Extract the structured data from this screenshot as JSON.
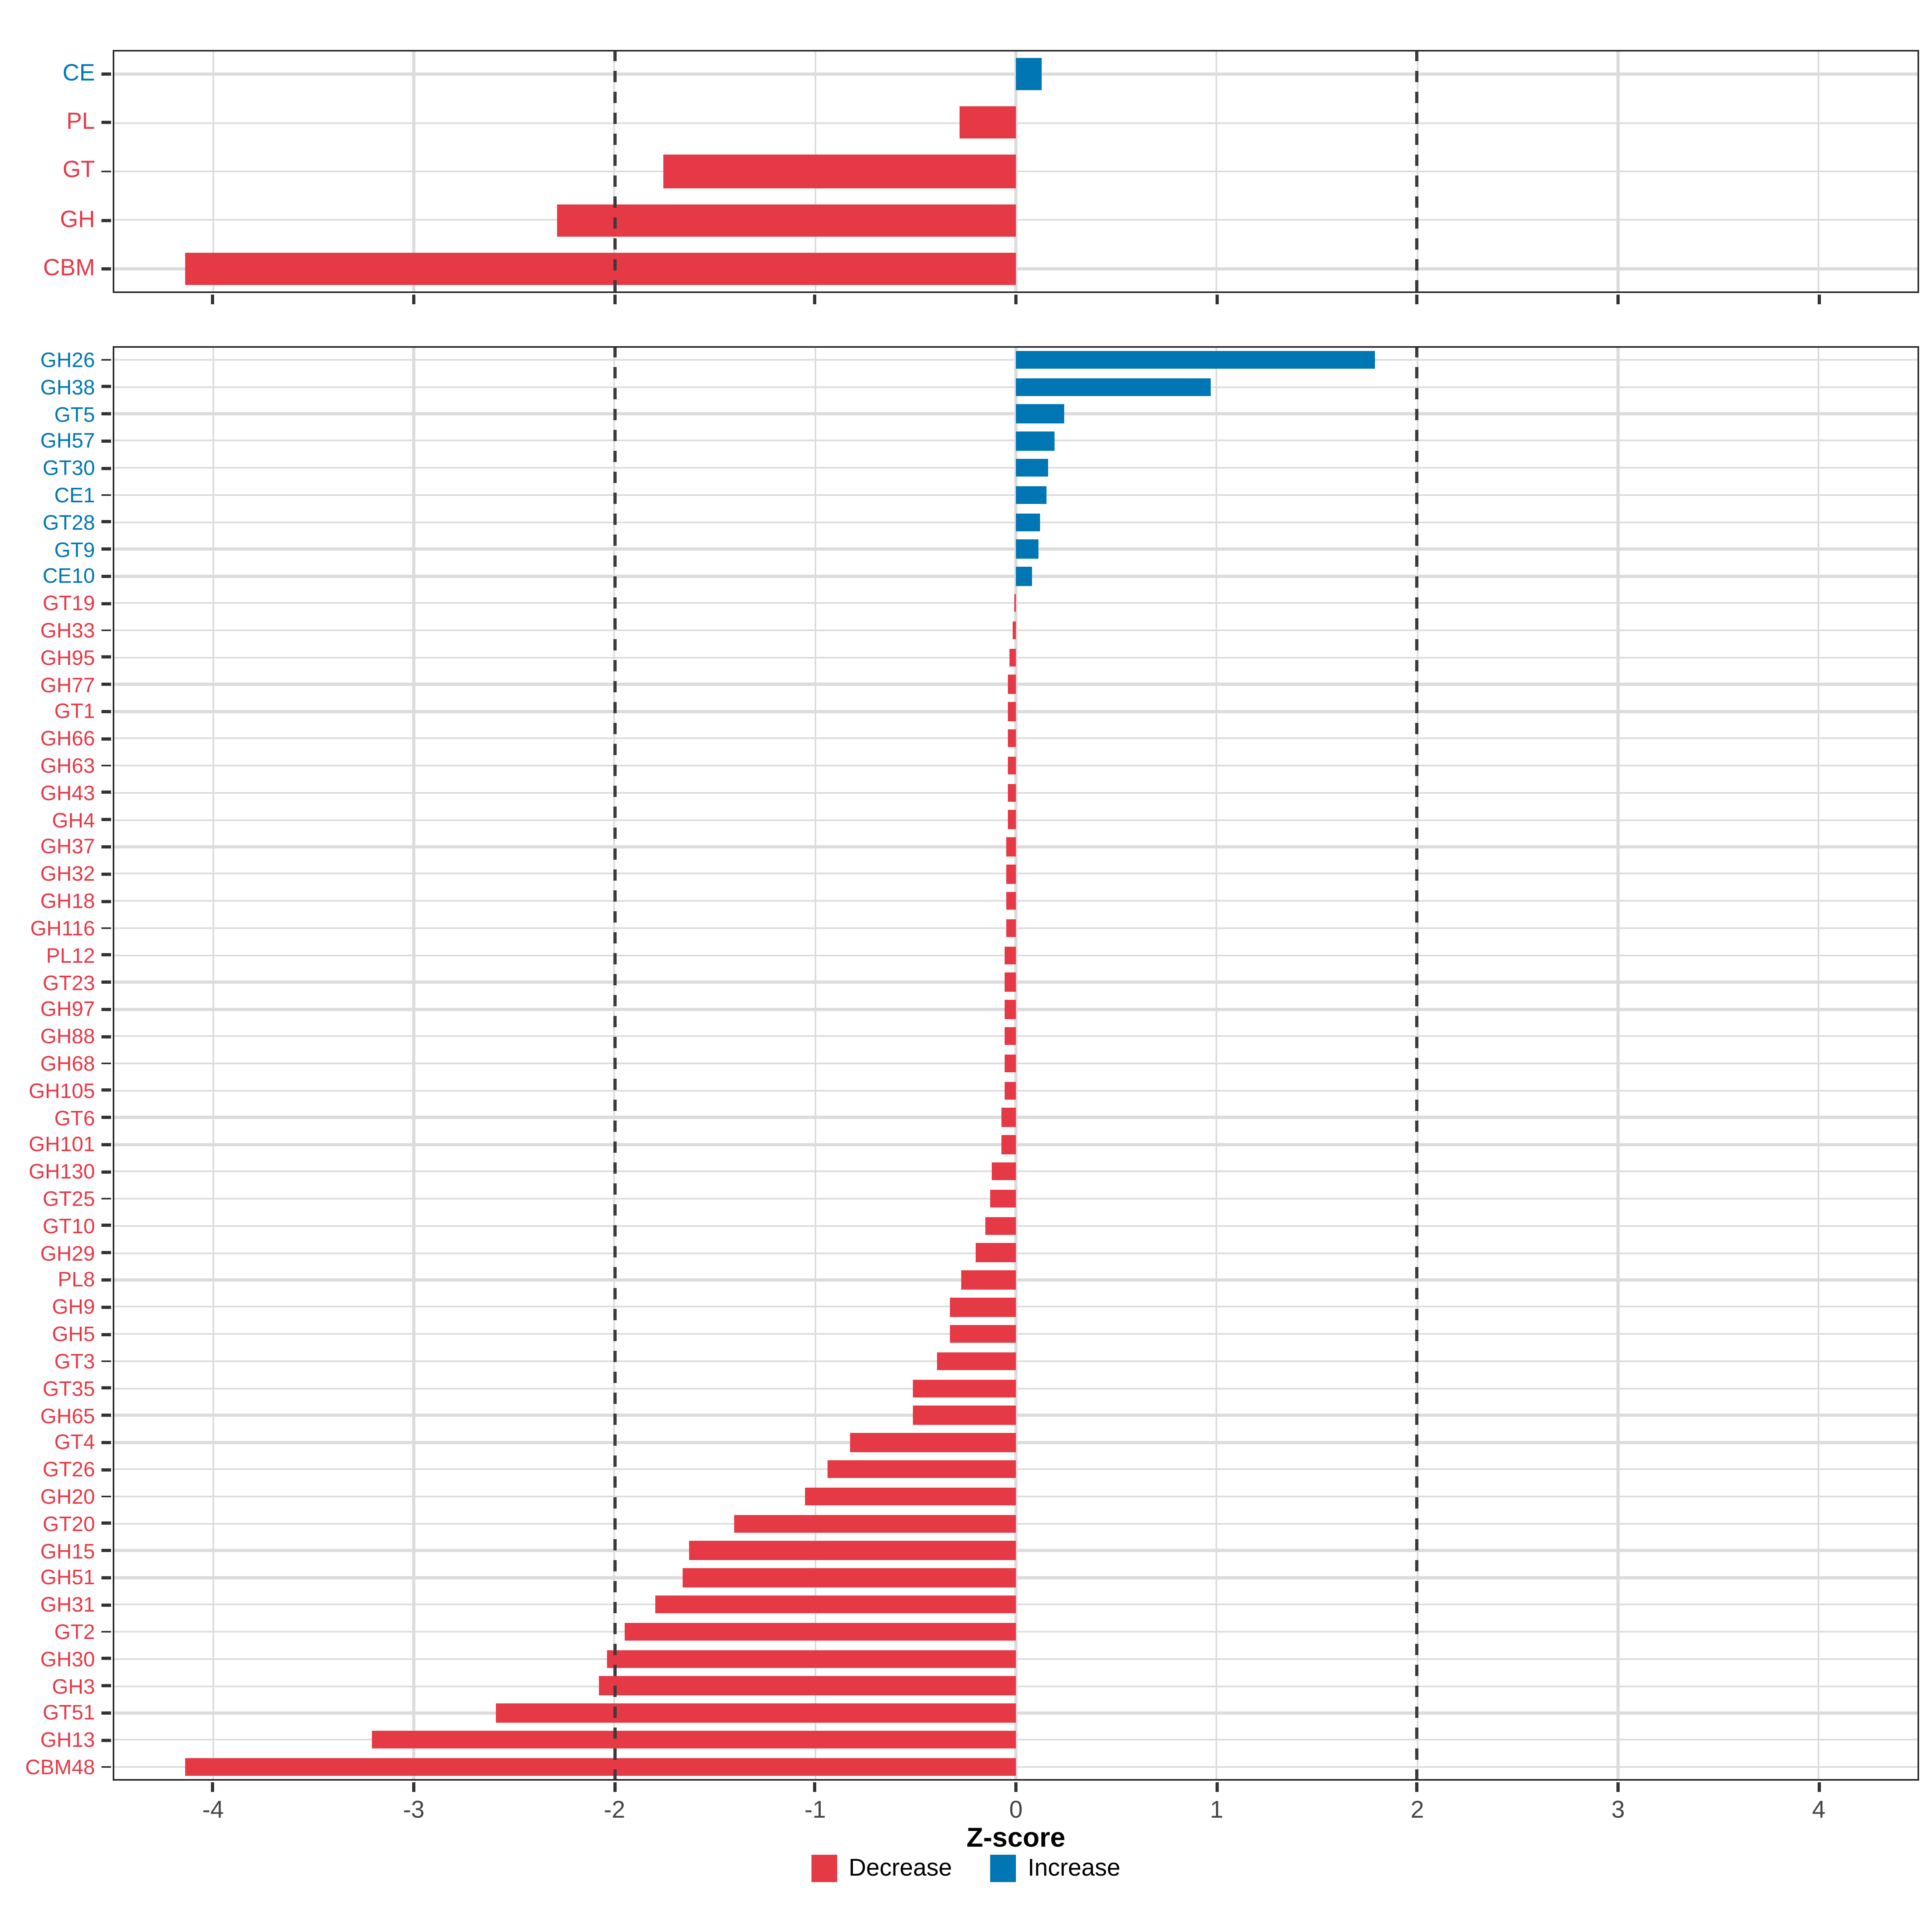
{
  "chart_data": {
    "type": "bar",
    "orientation": "horizontal",
    "xlabel": "Z-score",
    "xlim": [
      -4.5,
      4.5
    ],
    "x_ticks": [
      -4,
      -3,
      -2,
      -1,
      0,
      1,
      2,
      3,
      4
    ],
    "reference_lines": [
      -2,
      2
    ],
    "grid": true,
    "legend_position": "bottom",
    "top_panel": {
      "categories": [
        "CE",
        "PL",
        "GT",
        "GH",
        "CBM"
      ],
      "values": [
        0.13,
        -0.28,
        -1.76,
        -2.29,
        -4.14
      ]
    },
    "bottom_panel": {
      "categories": [
        "GH26",
        "GH38",
        "GT5",
        "GH57",
        "GT30",
        "CE1",
        "GT28",
        "GT9",
        "CE10",
        "GT19",
        "GH33",
        "GH95",
        "GH77",
        "GT1",
        "GH66",
        "GH63",
        "GH43",
        "GH4",
        "GH37",
        "GH32",
        "GH18",
        "GH116",
        "PL12",
        "GT23",
        "GH97",
        "GH88",
        "GH68",
        "GH105",
        "GT6",
        "GH101",
        "GH130",
        "GT25",
        "GT10",
        "GH29",
        "PL8",
        "GH9",
        "GH5",
        "GT3",
        "GT35",
        "GH65",
        "GT4",
        "GT26",
        "GH20",
        "GT20",
        "GH15",
        "GH51",
        "GH31",
        "GT2",
        "GH30",
        "GH3",
        "GT51",
        "GH13",
        "CBM48"
      ],
      "values": [
        1.79,
        0.97,
        0.24,
        0.19,
        0.16,
        0.15,
        0.12,
        0.11,
        0.08,
        -0.01,
        -0.02,
        -0.03,
        -0.04,
        -0.042,
        -0.043,
        -0.043,
        -0.044,
        -0.044,
        -0.045,
        -0.045,
        -0.045,
        -0.046,
        -0.055,
        -0.058,
        -0.059,
        -0.059,
        -0.06,
        -0.06,
        -0.072,
        -0.073,
        -0.12,
        -0.13,
        -0.15,
        -0.2,
        -0.27,
        -0.33,
        -0.33,
        -0.39,
        -0.51,
        -0.51,
        -0.83,
        -0.94,
        -1.05,
        -1.4,
        -1.63,
        -1.66,
        -1.8,
        -1.95,
        -2.04,
        -2.08,
        -2.59,
        -3.21,
        -4.14
      ]
    }
  },
  "legend": {
    "items": [
      {
        "label": "Decrease",
        "color": "#E63946"
      },
      {
        "label": "Increase",
        "color": "#0076B4"
      }
    ]
  },
  "colors": {
    "decrease": "#E63946",
    "increase": "#0076B4"
  }
}
